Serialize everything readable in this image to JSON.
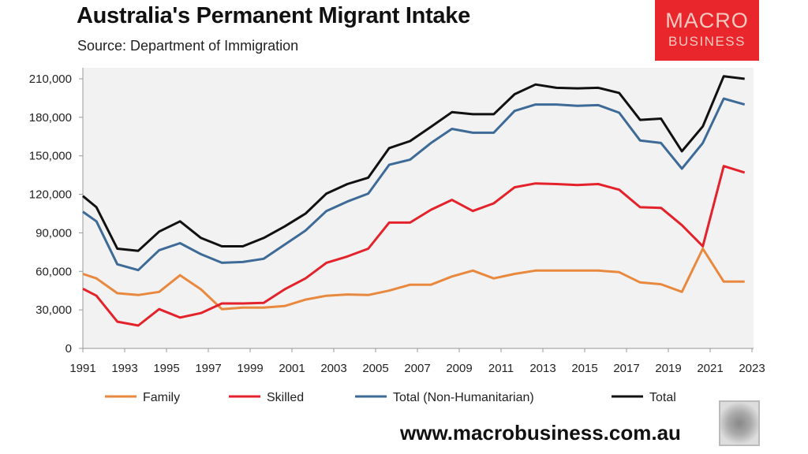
{
  "chart_data": {
    "type": "line",
    "title": "Australia's Permanent Migrant Intake",
    "subtitle": "Source: Department of Immigration",
    "xlabel": "",
    "ylabel": "",
    "xlim": [
      1991,
      2023
    ],
    "ylim": [
      0,
      210000
    ],
    "grid": false,
    "legend_position": "bottom",
    "x_ticks": [
      "1991",
      "1993",
      "1995",
      "1997",
      "1999",
      "2001",
      "2003",
      "2005",
      "2007",
      "2009",
      "2011",
      "2013",
      "2015",
      "2017",
      "2019",
      "2021",
      "2023"
    ],
    "y_ticks": [
      "0",
      "30,000",
      "60,000",
      "90,000",
      "120,000",
      "150,000",
      "180,000",
      "210,000"
    ],
    "x": [
      1991,
      1991.65,
      1992.65,
      1993.65,
      1994.65,
      1995.65,
      1996.65,
      1997.65,
      1998.65,
      1999.65,
      2000.65,
      2001.65,
      2002.65,
      2003.65,
      2004.65,
      2005.65,
      2006.65,
      2007.65,
      2008.65,
      2009.65,
      2010.65,
      2011.65,
      2012.65,
      2013.65,
      2014.65,
      2015.65,
      2016.65,
      2017.65,
      2018.65,
      2019.65,
      2020.65,
      2021.65,
      2022.65
    ],
    "series": [
      {
        "name": "Family",
        "color": "#e8893f",
        "values": [
          58000,
          54500,
          43000,
          41600,
          44000,
          57000,
          46000,
          30600,
          31800,
          31800,
          33000,
          38000,
          41000,
          42000,
          41600,
          45000,
          49600,
          49600,
          56000,
          60600,
          54500,
          58000,
          60600,
          60600,
          60600,
          60600,
          59400,
          51400,
          50000,
          44000,
          77700,
          52000,
          52000
        ]
      },
      {
        "name": "Skilled",
        "color": "#e4222b",
        "values": [
          46500,
          41000,
          20800,
          17800,
          30600,
          24000,
          27500,
          35000,
          35000,
          35500,
          46000,
          54500,
          66700,
          71600,
          77700,
          98000,
          98000,
          108000,
          115700,
          107000,
          113000,
          125500,
          128500,
          128000,
          127300,
          128000,
          123600,
          110000,
          109500,
          96000,
          79500,
          142000,
          137000
        ]
      },
      {
        "name": "Total (Non-Humanitarian)",
        "color": "#3d6a96",
        "values": [
          106500,
          99000,
          65500,
          61000,
          76500,
          82000,
          73400,
          66700,
          67300,
          69800,
          80800,
          91800,
          107000,
          114400,
          120600,
          143000,
          147000,
          160000,
          171000,
          168000,
          168000,
          185000,
          190000,
          190000,
          189000,
          189500,
          183600,
          162000,
          160000,
          140000,
          160000,
          194600,
          190000
        ]
      },
      {
        "name": "Total",
        "color": "#111111",
        "values": [
          118700,
          110000,
          77700,
          76000,
          91000,
          99000,
          86000,
          79500,
          79500,
          86000,
          95000,
          105000,
          120600,
          128000,
          133000,
          156000,
          161500,
          172600,
          184000,
          182400,
          182400,
          198000,
          205600,
          203000,
          202600,
          203000,
          199000,
          178000,
          179000,
          153600,
          173000,
          212000,
          210000
        ]
      }
    ]
  },
  "logo": {
    "line1": "MACRO",
    "line2": "BUSINESS"
  },
  "footer": {
    "url": "www.macrobusiness.com.au"
  }
}
